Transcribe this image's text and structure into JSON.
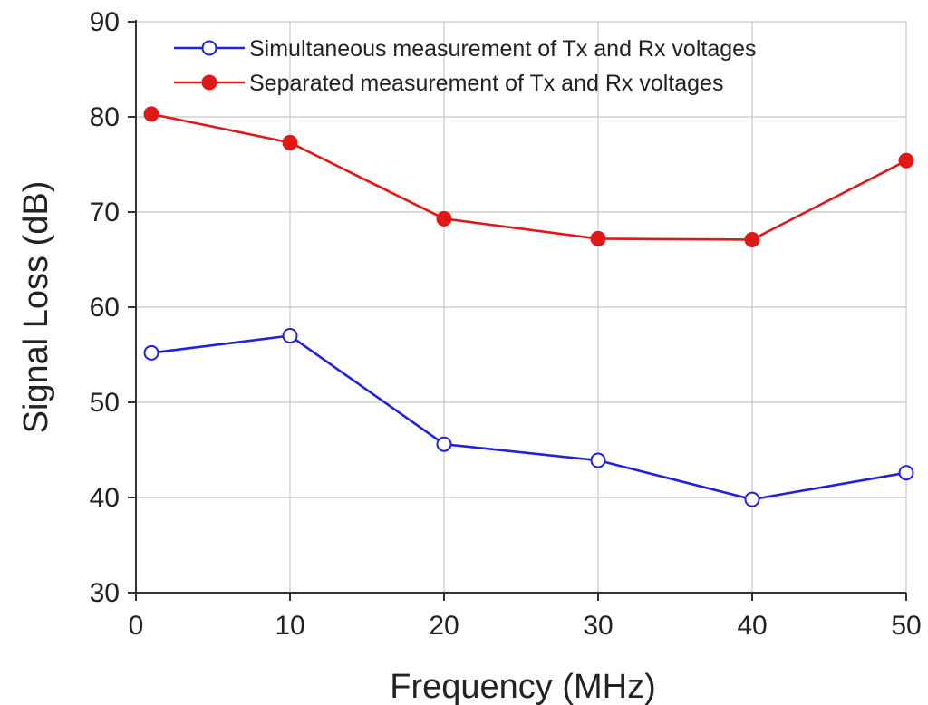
{
  "chart_data": {
    "type": "line",
    "title": "",
    "xlabel": "Frequency (MHz)",
    "ylabel": "Signal Loss (dB)",
    "xlim": [
      0,
      50
    ],
    "ylim": [
      30,
      90
    ],
    "xticks": [
      0,
      10,
      20,
      30,
      40,
      50
    ],
    "yticks": [
      30,
      40,
      50,
      60,
      70,
      80,
      90
    ],
    "grid": true,
    "legend_position": "top",
    "series": [
      {
        "name": "Simultaneous measurement of Tx and Rx voltages",
        "color": "#2020e0",
        "marker": "open-circle",
        "x": [
          1,
          10,
          20,
          30,
          40,
          50
        ],
        "y": [
          55.2,
          57.0,
          45.6,
          43.9,
          39.8,
          42.6
        ]
      },
      {
        "name": "Separated measurement of Tx and Rx voltages",
        "color": "#e01818",
        "marker": "filled-circle",
        "x": [
          1,
          10,
          20,
          30,
          40,
          50
        ],
        "y": [
          80.3,
          77.3,
          69.3,
          67.2,
          67.1,
          75.4
        ]
      }
    ]
  }
}
